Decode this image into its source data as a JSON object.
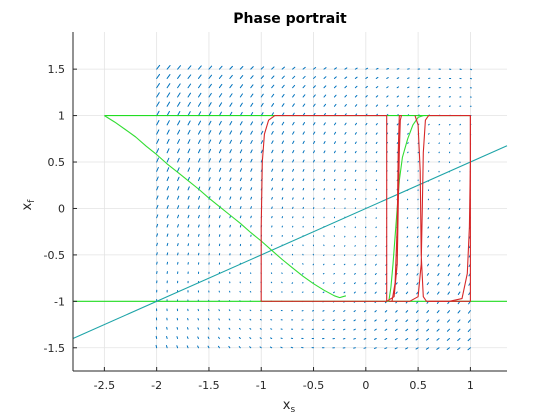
{
  "chart_data": {
    "type": "line",
    "title": "Phase portrait",
    "xlabel": {
      "main": "x",
      "sub": "s"
    },
    "ylabel": {
      "main": "x",
      "sub": "f"
    },
    "xlim": [
      -2.8,
      1.35
    ],
    "ylim": [
      -1.75,
      1.9
    ],
    "xticks": [
      -2.5,
      -2,
      -1.5,
      -1,
      -0.5,
      0,
      0.5,
      1
    ],
    "yticks": [
      -1.5,
      -1,
      -0.5,
      0,
      0.5,
      1,
      1.5
    ],
    "xtick_labels": [
      "-2.5",
      "-2",
      "-1.5",
      "-1",
      "-0.5",
      "0",
      "0.5",
      "1"
    ],
    "ytick_labels": [
      "-1.5",
      "-1",
      "-0.5",
      "0",
      "0.5",
      "1",
      "1.5"
    ],
    "grid": true,
    "colors": {
      "quiver": "#0072bd",
      "nullcline_linear": "#1ea4a8",
      "nullcline_horizontal": "#22dd22",
      "trajectory_green": "#33dd33",
      "trajectory_red": "#d62728",
      "grid": "#e3e3e3",
      "axes": "#262626"
    },
    "series": [
      {
        "id": "nullcline-upper",
        "kind": "line",
        "points": [
          [
            -2.5,
            1
          ],
          [
            1.0,
            1
          ]
        ]
      },
      {
        "id": "nullcline-lower",
        "kind": "line",
        "points": [
          [
            -2.8,
            -1
          ],
          [
            1.35,
            -1
          ]
        ]
      },
      {
        "id": "nullcline-linear",
        "kind": "line",
        "points": [
          [
            -2.8,
            -1.4
          ],
          [
            1.35,
            0.675
          ]
        ]
      },
      {
        "id": "trajectory-green",
        "kind": "line",
        "points": [
          [
            -2.5,
            1
          ],
          [
            -2.4,
            0.93
          ],
          [
            -2.3,
            0.85
          ],
          [
            -2.2,
            0.77
          ],
          [
            -2.1,
            0.67
          ],
          [
            -2.0,
            0.58
          ],
          [
            -1.9,
            0.48
          ],
          [
            -1.8,
            0.39
          ],
          [
            -1.7,
            0.3
          ],
          [
            -1.6,
            0.21
          ],
          [
            -1.5,
            0.11
          ],
          [
            -1.4,
            0.02
          ],
          [
            -1.3,
            -0.07
          ],
          [
            -1.2,
            -0.16
          ],
          [
            -1.1,
            -0.26
          ],
          [
            -1.0,
            -0.35
          ],
          [
            -0.9,
            -0.45
          ],
          [
            -0.8,
            -0.55
          ],
          [
            -0.7,
            -0.64
          ],
          [
            -0.6,
            -0.73
          ],
          [
            -0.5,
            -0.81
          ],
          [
            -0.4,
            -0.88
          ],
          [
            -0.3,
            -0.94
          ],
          [
            -0.25,
            -0.96
          ],
          [
            -0.22,
            -0.95
          ],
          [
            -0.19,
            -0.94
          ]
        ]
      },
      {
        "id": "trajectory-green-2",
        "kind": "line",
        "points": [
          [
            0.22,
            -1.0
          ],
          [
            0.24,
            -0.85
          ],
          [
            0.26,
            -0.6
          ],
          [
            0.28,
            -0.3
          ],
          [
            0.3,
            0.0
          ],
          [
            0.32,
            0.3
          ],
          [
            0.35,
            0.55
          ],
          [
            0.4,
            0.75
          ],
          [
            0.45,
            0.9
          ],
          [
            0.5,
            0.98
          ],
          [
            0.55,
            1.0
          ]
        ]
      },
      {
        "id": "trajectory-red-1",
        "kind": "line",
        "points": [
          [
            -1.0,
            -1.0
          ],
          [
            -1.0,
            -0.2
          ],
          [
            -0.99,
            0.5
          ],
          [
            -0.97,
            0.8
          ],
          [
            -0.93,
            0.95
          ],
          [
            -0.87,
            1.0
          ],
          [
            0.2,
            1.0
          ],
          [
            0.2,
            -1.0
          ],
          [
            -1.0,
            -1.0
          ]
        ]
      },
      {
        "id": "trajectory-red-2",
        "kind": "line",
        "points": [
          [
            0.2,
            -1.0
          ],
          [
            0.27,
            -0.95
          ],
          [
            0.3,
            -0.6
          ],
          [
            0.31,
            0.0
          ],
          [
            0.32,
            0.6
          ],
          [
            0.33,
            0.95
          ],
          [
            0.34,
            1.0
          ],
          [
            0.32,
            1.0
          ],
          [
            0.31,
            0.6
          ],
          [
            0.3,
            -0.2
          ],
          [
            0.28,
            -0.8
          ],
          [
            0.25,
            -1.0
          ]
        ]
      },
      {
        "id": "trajectory-red-3",
        "kind": "line",
        "points": [
          [
            0.22,
            -1.0
          ],
          [
            0.42,
            -1.0
          ],
          [
            0.5,
            -0.95
          ],
          [
            0.53,
            -0.6
          ],
          [
            0.54,
            0.0
          ],
          [
            0.55,
            0.6
          ],
          [
            0.57,
            0.95
          ],
          [
            0.6,
            1.0
          ],
          [
            1.0,
            1.0
          ],
          [
            1.0,
            -1.0
          ],
          [
            0.58,
            -1.0
          ],
          [
            0.55,
            -0.95
          ],
          [
            0.53,
            -0.5
          ],
          [
            0.52,
            0.4
          ],
          [
            0.5,
            0.9
          ],
          [
            0.47,
            1.0
          ]
        ]
      },
      {
        "id": "trajectory-red-4",
        "kind": "line",
        "points": [
          [
            0.6,
            -1.0
          ],
          [
            0.8,
            -1.0
          ],
          [
            0.92,
            -0.97
          ],
          [
            0.97,
            -0.7
          ],
          [
            0.99,
            -0.2
          ],
          [
            1.0,
            0.5
          ],
          [
            1.0,
            1.0
          ]
        ]
      }
    ],
    "quiver": {
      "x_range": [
        -2.0,
        1.0
      ],
      "x_step": 0.1,
      "y_range": [
        -1.5,
        1.5
      ],
      "y_step": 0.1
    }
  }
}
